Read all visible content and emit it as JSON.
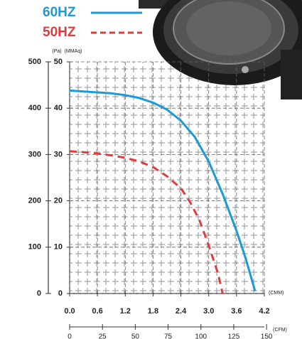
{
  "chart_data": {
    "type": "line",
    "x_label": "(CMM)",
    "x2_label": "(CFM)",
    "y_label": "(MMAq)",
    "y2_label": "(Pa)",
    "xlim": [
      0,
      4.2
    ],
    "xticks": [
      {
        "value": 0,
        "label": "0.0"
      },
      0.6,
      1.2,
      1.8,
      2.4,
      {
        "value": 3,
        "label": "3.0"
      },
      3.6,
      4.2
    ],
    "x2lim": [
      0,
      148.3
    ],
    "x2ticks": [
      0,
      25,
      50,
      75,
      100,
      125,
      150
    ],
    "ylim": [
      0,
      50
    ],
    "yticks": [
      0,
      10,
      20,
      30,
      40,
      50
    ],
    "y2lim": [
      0,
      500
    ],
    "y2ticks": [
      0,
      100,
      200,
      300,
      400,
      500
    ],
    "grid": true,
    "series": [
      {
        "name": "60HZ",
        "color": "#1c9ad6",
        "line_style": "solid",
        "x": [
          0,
          0.3,
          0.6,
          0.9,
          1.2,
          1.5,
          1.8,
          2.1,
          2.4,
          2.7,
          3.0,
          3.3,
          3.6,
          3.8,
          4.0
        ],
        "values": [
          43.8,
          43.6,
          43.4,
          43.2,
          42.8,
          42.2,
          41.2,
          39.7,
          37.3,
          33.8,
          28.5,
          21.5,
          13.5,
          7.5,
          0.5
        ]
      },
      {
        "name": "50HZ",
        "color": "#e23b3b",
        "line_style": "dashed",
        "x": [
          0,
          0.3,
          0.6,
          0.9,
          1.2,
          1.5,
          1.8,
          2.1,
          2.4,
          2.6,
          2.8,
          3.0,
          3.2,
          3.3
        ],
        "values": [
          30.7,
          30.5,
          30.2,
          29.8,
          29.3,
          28.5,
          27.3,
          25.3,
          22.7,
          19.7,
          15.8,
          10.4,
          4.3,
          0
        ]
      }
    ]
  }
}
